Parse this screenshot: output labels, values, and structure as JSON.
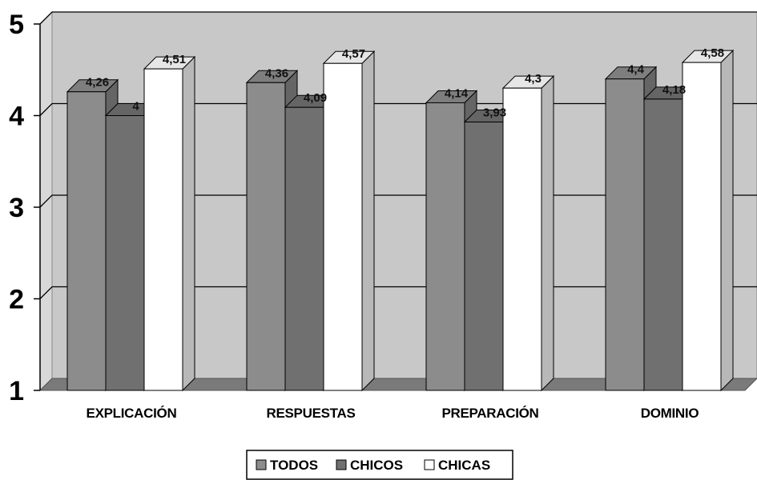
{
  "chart_data": {
    "type": "bar",
    "title": "",
    "xlabel": "",
    "ylabel": "",
    "ylim": [
      1,
      5
    ],
    "yticks": [
      1,
      2,
      3,
      4,
      5
    ],
    "grid": true,
    "legend_position": "bottom",
    "categories": [
      "EXPLICACIÓN",
      "RESPUESTAS",
      "PREPARACIÓN",
      "DOMINIO"
    ],
    "series": [
      {
        "name": "TODOS",
        "values": [
          4.26,
          4.36,
          4.14,
          4.4
        ],
        "labels": [
          "4,26",
          "4,36",
          "4,14",
          "4,4"
        ],
        "color": "#8c8c8c"
      },
      {
        "name": "CHICOS",
        "values": [
          4,
          4.09,
          3.93,
          4.18
        ],
        "labels": [
          "4",
          "4,09",
          "3,93",
          "4,18"
        ],
        "color": "#707070"
      },
      {
        "name": "CHICAS",
        "values": [
          4.51,
          4.57,
          4.3,
          4.58
        ],
        "labels": [
          "4,51",
          "4,57",
          "4,3",
          "4,58"
        ],
        "color": "#ffffff"
      }
    ],
    "colors": {
      "back_wall": "#c8c8c8",
      "floor": "#7a7a7a",
      "grid_line": "#000000"
    }
  }
}
